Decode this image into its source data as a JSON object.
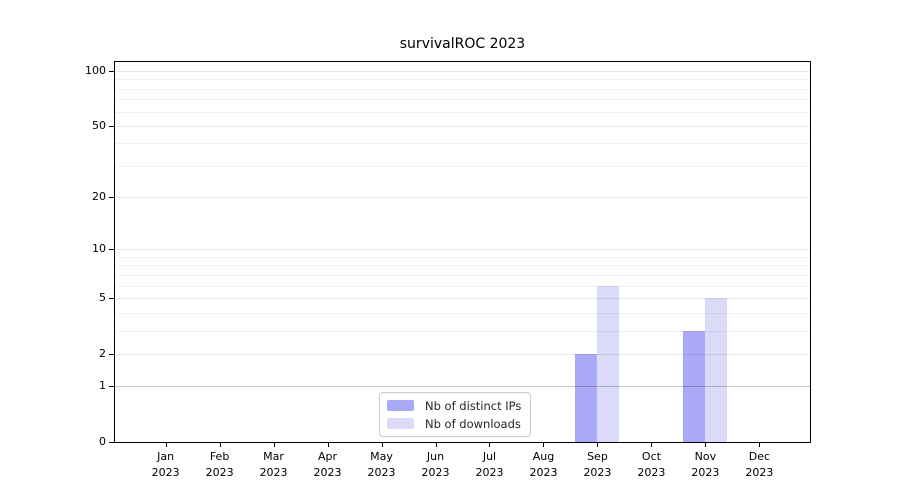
{
  "figure": {
    "title": "survivalROC 2023"
  },
  "chart_data": {
    "type": "bar",
    "title": "survivalROC 2023",
    "categories": [
      "Jan 2023",
      "Feb 2023",
      "Mar 2023",
      "Apr 2023",
      "May 2023",
      "Jun 2023",
      "Jul 2023",
      "Aug 2023",
      "Sep 2023",
      "Oct 2023",
      "Nov 2023",
      "Dec 2023"
    ],
    "month_labels": [
      "Jan",
      "Feb",
      "Mar",
      "Apr",
      "May",
      "Jun",
      "Jul",
      "Aug",
      "Sep",
      "Oct",
      "Nov",
      "Dec"
    ],
    "year_label": "2023",
    "series": [
      {
        "name": "Nb of distinct IPs",
        "color": "#a9a9f7",
        "values": [
          0,
          0,
          0,
          0,
          0,
          0,
          0,
          0,
          2,
          0,
          3,
          0
        ]
      },
      {
        "name": "Nb of downloads",
        "color": "#dbdbf9",
        "values": [
          0,
          0,
          0,
          0,
          0,
          0,
          0,
          0,
          6,
          0,
          5,
          0
        ]
      }
    ],
    "yscale": "log1p",
    "ylim": [
      0,
      112
    ],
    "ytick_values": [
      0,
      1,
      2,
      5,
      10,
      20,
      50,
      100
    ],
    "ytick_labels": [
      "0",
      "1",
      "2",
      "5",
      "10",
      "20",
      "50",
      "100"
    ],
    "minor_grid_values": [
      3,
      4,
      6,
      7,
      8,
      9,
      30,
      40,
      60,
      70,
      80,
      90
    ],
    "emphasized_grid_value": 1,
    "legend_position": "lower center",
    "grid": true
  }
}
